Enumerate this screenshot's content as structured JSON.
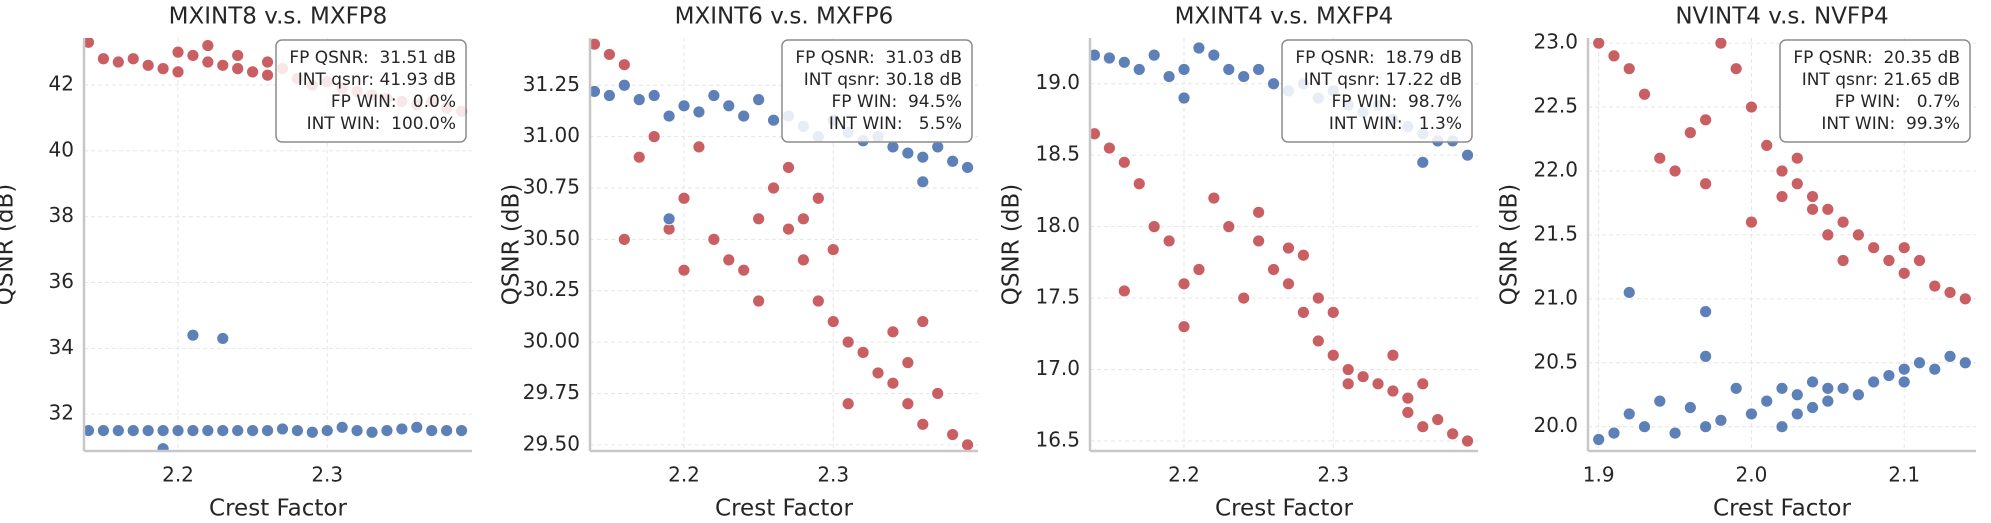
{
  "chart_data": [
    {
      "type": "scatter",
      "title": "MXINT8 v.s. MXFP8",
      "xlabel": "Crest Factor",
      "ylabel": "QSNR (dB)",
      "xlim": [
        2.137,
        2.397
      ],
      "ylim": [
        30.88,
        43.43
      ],
      "xticks": [
        2.2,
        2.3
      ],
      "yticks": [
        32,
        34,
        36,
        38,
        40,
        42
      ],
      "grid": true,
      "annotation": [
        "FP QSNR:  31.51 dB",
        "INT qsnr: 41.93 dB",
        "FP WIN:   0.0%",
        "INT WIN:  100.0%"
      ],
      "series": [
        {
          "color": "#c44e52",
          "x": [
            2.14,
            2.15,
            2.16,
            2.17,
            2.18,
            2.19,
            2.2,
            2.21,
            2.22,
            2.23,
            2.24,
            2.25,
            2.26,
            2.27,
            2.28,
            2.29,
            2.3,
            2.31,
            2.32,
            2.33,
            2.34,
            2.35,
            2.36,
            2.37,
            2.38,
            2.39,
            2.22,
            2.24,
            2.26,
            2.2
          ],
          "values": [
            43.3,
            42.8,
            42.7,
            42.8,
            42.6,
            42.5,
            43.0,
            42.9,
            42.7,
            42.6,
            42.5,
            42.4,
            42.3,
            42.5,
            42.2,
            42.0,
            42.1,
            41.9,
            41.8,
            41.7,
            41.6,
            41.5,
            41.4,
            41.5,
            41.3,
            41.2,
            43.2,
            42.9,
            42.7,
            42.4
          ]
        },
        {
          "color": "#4c72b0",
          "x": [
            2.14,
            2.15,
            2.16,
            2.17,
            2.18,
            2.19,
            2.2,
            2.21,
            2.22,
            2.23,
            2.24,
            2.25,
            2.26,
            2.27,
            2.28,
            2.29,
            2.3,
            2.31,
            2.32,
            2.33,
            2.34,
            2.35,
            2.36,
            2.37,
            2.38,
            2.39,
            2.21,
            2.23,
            2.19
          ],
          "values": [
            31.5,
            31.5,
            31.5,
            31.5,
            31.5,
            31.5,
            31.5,
            31.5,
            31.5,
            31.5,
            31.5,
            31.5,
            31.5,
            31.55,
            31.5,
            31.45,
            31.5,
            31.6,
            31.5,
            31.45,
            31.5,
            31.55,
            31.6,
            31.5,
            31.5,
            31.5,
            34.4,
            34.3,
            30.95
          ]
        }
      ]
    },
    {
      "type": "scatter",
      "title": "MXINT6 v.s. MXFP6",
      "xlabel": "Crest Factor",
      "ylabel": "QSNR (dB)",
      "xlim": [
        2.137,
        2.397
      ],
      "ylim": [
        29.47,
        31.48
      ],
      "xticks": [
        2.2,
        2.3
      ],
      "yticks": [
        {
          "value": 29.5,
          "label": "29.50"
        },
        29.75,
        {
          "value": 30,
          "label": "30.00"
        },
        30.25,
        {
          "value": 30.5,
          "label": "30.50"
        },
        30.75,
        {
          "value": 31,
          "label": "31.00"
        },
        31.25
      ],
      "grid": true,
      "annotation": [
        "FP QSNR:  31.03 dB",
        "INT qsnr: 30.18 dB",
        "FP WIN:  94.5%",
        "INT WIN:   5.5%"
      ],
      "series": [
        {
          "color": "#c44e52",
          "x": [
            2.14,
            2.15,
            2.16,
            2.17,
            2.18,
            2.19,
            2.2,
            2.21,
            2.22,
            2.23,
            2.24,
            2.25,
            2.26,
            2.27,
            2.27,
            2.28,
            2.28,
            2.29,
            2.29,
            2.3,
            2.3,
            2.31,
            2.32,
            2.33,
            2.34,
            2.34,
            2.35,
            2.35,
            2.36,
            2.36,
            2.37,
            2.38,
            2.39,
            2.16,
            2.2,
            2.25,
            2.31
          ],
          "values": [
            31.45,
            31.4,
            31.35,
            30.9,
            31.0,
            30.55,
            30.7,
            30.95,
            30.5,
            30.4,
            30.35,
            30.6,
            30.75,
            30.55,
            30.85,
            30.6,
            30.4,
            30.7,
            30.2,
            30.1,
            30.45,
            30.0,
            29.95,
            29.85,
            30.05,
            29.8,
            29.9,
            29.7,
            30.1,
            29.6,
            29.75,
            29.55,
            29.5,
            30.5,
            30.35,
            30.2,
            29.7
          ]
        },
        {
          "color": "#4c72b0",
          "x": [
            2.14,
            2.15,
            2.16,
            2.17,
            2.18,
            2.19,
            2.2,
            2.21,
            2.22,
            2.23,
            2.24,
            2.25,
            2.26,
            2.27,
            2.28,
            2.29,
            2.3,
            2.31,
            2.32,
            2.33,
            2.34,
            2.35,
            2.36,
            2.37,
            2.38,
            2.39,
            2.36,
            2.19
          ],
          "values": [
            31.22,
            31.2,
            31.25,
            31.18,
            31.2,
            31.1,
            31.15,
            31.12,
            31.2,
            31.15,
            31.1,
            31.18,
            31.08,
            31.1,
            31.05,
            31.0,
            31.08,
            31.02,
            30.98,
            31.0,
            30.95,
            30.92,
            30.9,
            30.95,
            30.88,
            30.85,
            30.78,
            30.6
          ]
        }
      ]
    },
    {
      "type": "scatter",
      "title": "MXINT4 v.s. MXFP4",
      "xlabel": "Crest Factor",
      "ylabel": "QSNR (dB)",
      "xlim": [
        2.137,
        2.397
      ],
      "ylim": [
        16.43,
        19.32
      ],
      "xticks": [
        2.2,
        2.3
      ],
      "yticks": [
        16.5,
        {
          "value": 17,
          "label": "17.0"
        },
        17.5,
        {
          "value": 18,
          "label": "18.0"
        },
        18.5,
        {
          "value": 19,
          "label": "19.0"
        }
      ],
      "grid": true,
      "annotation": [
        "FP QSNR:  18.79 dB",
        "INT qsnr: 17.22 dB",
        "FP WIN:  98.7%",
        "INT WIN:   1.3%"
      ],
      "series": [
        {
          "color": "#c44e52",
          "x": [
            2.14,
            2.15,
            2.16,
            2.17,
            2.18,
            2.19,
            2.2,
            2.21,
            2.22,
            2.23,
            2.24,
            2.25,
            2.26,
            2.27,
            2.27,
            2.28,
            2.28,
            2.29,
            2.29,
            2.3,
            2.3,
            2.31,
            2.32,
            2.33,
            2.34,
            2.34,
            2.35,
            2.35,
            2.36,
            2.36,
            2.37,
            2.38,
            2.39,
            2.16,
            2.2,
            2.25,
            2.31
          ],
          "values": [
            18.65,
            18.55,
            18.45,
            18.3,
            18.0,
            17.9,
            17.6,
            17.7,
            18.2,
            18.0,
            17.5,
            17.9,
            17.7,
            17.85,
            17.6,
            17.8,
            17.4,
            17.5,
            17.2,
            17.1,
            17.4,
            17.0,
            16.95,
            16.9,
            17.1,
            16.85,
            16.8,
            16.7,
            16.9,
            16.6,
            16.65,
            16.55,
            16.5,
            17.55,
            17.3,
            18.1,
            16.9
          ]
        },
        {
          "color": "#4c72b0",
          "x": [
            2.14,
            2.15,
            2.16,
            2.17,
            2.18,
            2.19,
            2.2,
            2.21,
            2.22,
            2.23,
            2.24,
            2.25,
            2.26,
            2.27,
            2.28,
            2.29,
            2.3,
            2.31,
            2.32,
            2.33,
            2.34,
            2.35,
            2.36,
            2.37,
            2.38,
            2.39,
            2.36,
            2.2
          ],
          "values": [
            19.2,
            19.18,
            19.15,
            19.1,
            19.2,
            19.05,
            19.1,
            19.25,
            19.2,
            19.1,
            19.05,
            19.1,
            19.0,
            18.95,
            19.0,
            18.9,
            18.95,
            18.85,
            18.8,
            18.85,
            18.75,
            18.7,
            18.65,
            18.6,
            18.6,
            18.5,
            18.45,
            18.9
          ]
        }
      ]
    },
    {
      "type": "scatter",
      "title": "NVINT4 v.s. NVFP4",
      "xlabel": "Crest Factor",
      "ylabel": "QSNR (dB)",
      "xlim": [
        1.893,
        2.147
      ],
      "ylim": [
        19.81,
        23.04
      ],
      "xticks": [
        1.9,
        {
          "value": 2,
          "label": "2.0"
        },
        2.1
      ],
      "yticks": [
        {
          "value": 20,
          "label": "20.0"
        },
        20.5,
        {
          "value": 21,
          "label": "21.0"
        },
        21.5,
        {
          "value": 22,
          "label": "22.0"
        },
        22.5,
        {
          "value": 23,
          "label": "23.0"
        }
      ],
      "grid": true,
      "annotation": [
        "FP QSNR:  20.35 dB",
        "INT qsnr: 21.65 dB",
        "FP WIN:   0.7%",
        "INT WIN:  99.3%"
      ],
      "series": [
        {
          "color": "#c44e52",
          "x": [
            1.9,
            1.91,
            1.92,
            1.93,
            1.94,
            1.95,
            1.96,
            1.97,
            1.98,
            1.99,
            2.0,
            2.01,
            2.02,
            2.02,
            2.03,
            2.03,
            2.04,
            2.04,
            2.05,
            2.05,
            2.06,
            2.07,
            2.08,
            2.09,
            2.1,
            2.1,
            2.11,
            2.12,
            2.13,
            2.14,
            1.97,
            2.0,
            2.06
          ],
          "values": [
            23.0,
            22.9,
            22.8,
            22.6,
            22.1,
            22.0,
            22.3,
            22.4,
            23.0,
            22.8,
            22.5,
            22.2,
            22.0,
            21.8,
            22.1,
            21.9,
            21.8,
            21.7,
            21.7,
            21.5,
            21.6,
            21.5,
            21.4,
            21.3,
            21.4,
            21.2,
            21.3,
            21.1,
            21.05,
            21.0,
            21.9,
            21.6,
            21.3
          ]
        },
        {
          "color": "#4c72b0",
          "x": [
            1.9,
            1.91,
            1.92,
            1.93,
            1.94,
            1.95,
            1.96,
            1.97,
            1.98,
            1.99,
            2.0,
            2.01,
            2.02,
            2.02,
            2.03,
            2.03,
            2.04,
            2.04,
            2.05,
            2.05,
            2.06,
            2.07,
            2.08,
            2.09,
            2.1,
            2.1,
            2.11,
            2.12,
            2.13,
            2.14,
            1.92,
            1.97,
            1.97
          ],
          "values": [
            19.9,
            19.95,
            20.1,
            20.0,
            20.2,
            19.95,
            20.15,
            20.0,
            20.05,
            20.3,
            20.1,
            20.2,
            20.0,
            20.3,
            20.1,
            20.25,
            20.15,
            20.35,
            20.2,
            20.3,
            20.3,
            20.25,
            20.35,
            20.4,
            20.45,
            20.35,
            20.5,
            20.45,
            20.55,
            20.5,
            21.05,
            20.9,
            20.55
          ]
        }
      ]
    }
  ]
}
